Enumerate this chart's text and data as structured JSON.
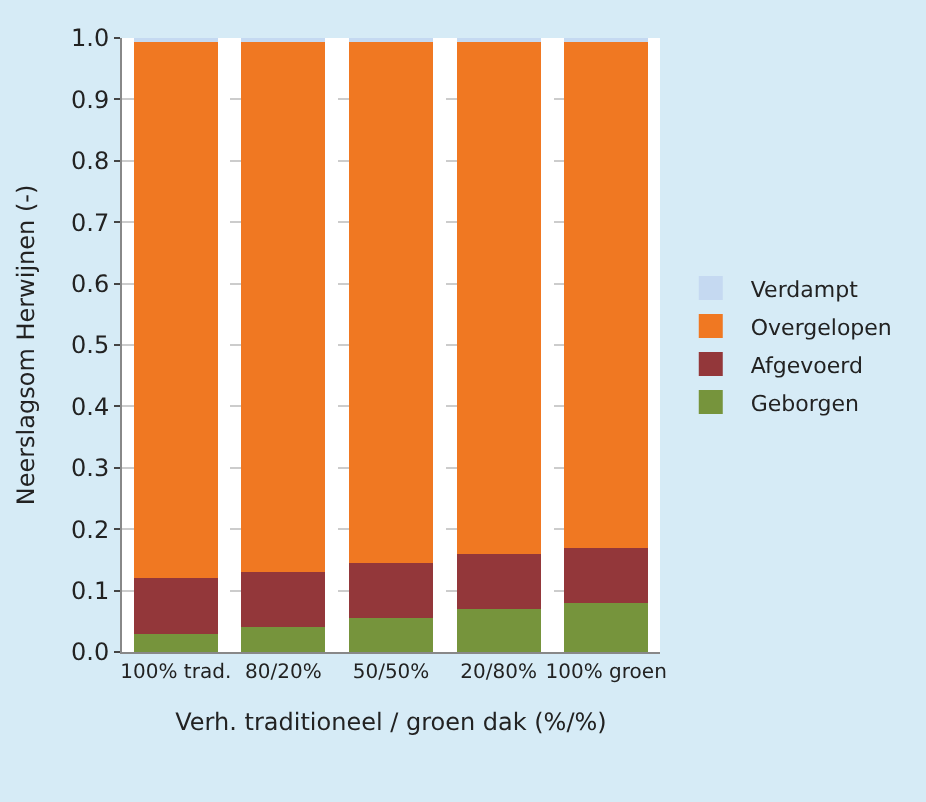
{
  "chart_data": {
    "type": "bar",
    "stacked": true,
    "xlabel": "Verh. traditioneel / groen dak (%/%)",
    "ylabel": "Neerslagsom Herwijnen (-)",
    "categories": [
      "100% trad.",
      "80/20%",
      "50/50%",
      "20/80%",
      "100% groen"
    ],
    "series": [
      {
        "name": "Geborgen",
        "color": "#76943c",
        "values": [
          0.03,
          0.04,
          0.055,
          0.07,
          0.08
        ]
      },
      {
        "name": "Afgevoerd",
        "color": "#93373a",
        "values": [
          0.09,
          0.09,
          0.09,
          0.09,
          0.09
        ]
      },
      {
        "name": "Overgelopen",
        "color": "#f07822",
        "values": [
          0.875,
          0.865,
          0.85,
          0.835,
          0.825
        ]
      },
      {
        "name": "Verdampt",
        "color": "#c5d9f1",
        "values": [
          0.005,
          0.005,
          0.005,
          0.005,
          0.005
        ]
      }
    ],
    "ylim": [
      0,
      1.0
    ],
    "yticks": [
      {
        "value": 0,
        "label": "0.0"
      },
      0.1,
      0.2,
      0.3,
      0.4,
      0.5,
      0.6,
      0.7,
      0.8,
      0.9,
      {
        "value": 1,
        "label": "1.0"
      }
    ],
    "grid": "y",
    "legend": "right"
  }
}
